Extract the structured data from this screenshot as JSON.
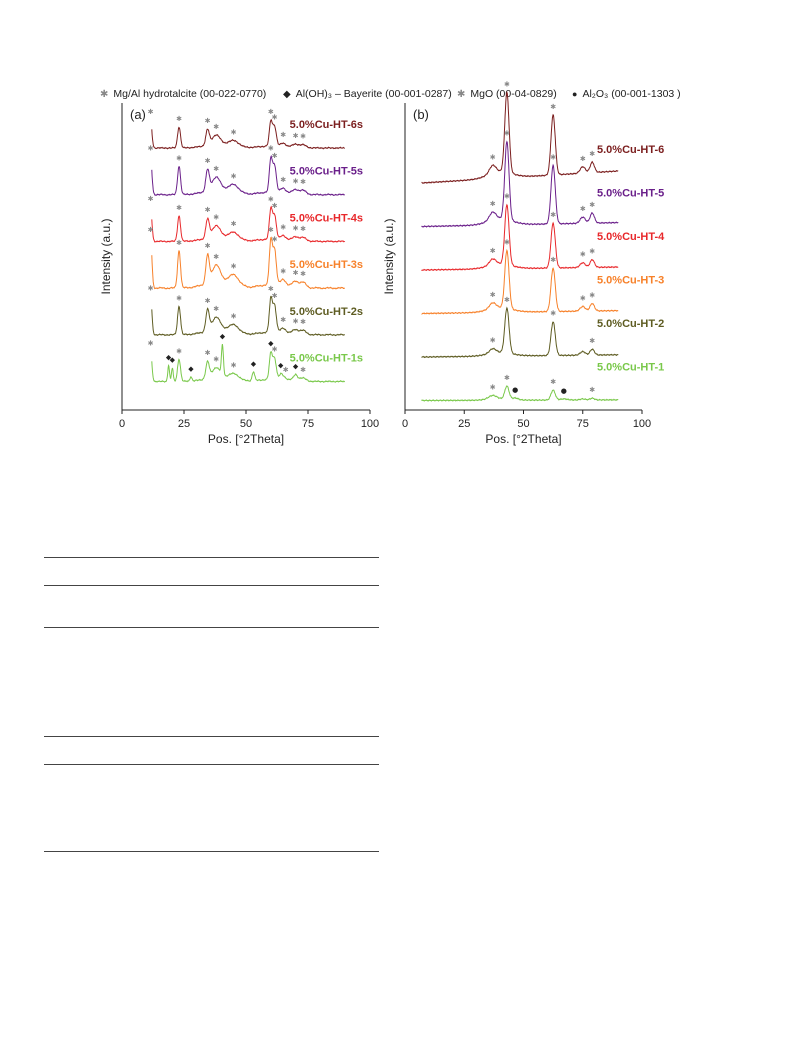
{
  "legend": {
    "items": [
      {
        "marker": "star",
        "text": "Mg/Al hydrotalcite (00-022-0770)"
      },
      {
        "marker": "diamond",
        "text": "Al(OH)₃ – Bayerite (00-001-0287)"
      },
      {
        "marker": "star",
        "text": "MgO (00-04-0829)"
      },
      {
        "marker": "dot",
        "text": "Al₂O₃ (00-001-1303 )"
      }
    ]
  },
  "chart_data": [
    {
      "panel_label": "(a)",
      "type": "line",
      "xlabel": "Pos. [°2Theta]",
      "ylabel": "Intensity (a.u.)",
      "xlim": [
        0,
        100
      ],
      "xticks": [
        0,
        25,
        50,
        75,
        100
      ],
      "yticks_shown": false,
      "series": [
        {
          "name": "5.0%Cu-HT-6s",
          "color": "#7b1e1e",
          "peaks_2theta": [
            11.5,
            23,
            34.5,
            38,
            45,
            60,
            61.5,
            65,
            70,
            73
          ],
          "hydrotalcite_marks": [
            11.5,
            23,
            34.5,
            38,
            45,
            60,
            61.5,
            65,
            70,
            73
          ]
        },
        {
          "name": "5.0%Cu-HT-5s",
          "color": "#6a1f8a",
          "peaks_2theta": [
            11.5,
            23,
            34.5,
            38,
            45,
            60,
            61.5,
            65,
            70,
            73
          ],
          "hydrotalcite_marks": [
            11.5,
            23,
            34.5,
            38,
            45,
            60,
            61.5,
            65,
            70,
            73
          ]
        },
        {
          "name": "5.0%Cu-HT-4s",
          "color": "#e8282b",
          "peaks_2theta": [
            11.5,
            23,
            34.5,
            38,
            45,
            60,
            61.5,
            65,
            70,
            73
          ],
          "hydrotalcite_marks": [
            11.5,
            23,
            34.5,
            38,
            45,
            60,
            61.5,
            65,
            70,
            73
          ]
        },
        {
          "name": "5.0%Cu-HT-3s",
          "color": "#f7812a",
          "peaks_2theta": [
            11.5,
            23,
            34.5,
            38,
            45,
            60,
            61.5,
            65,
            70,
            73
          ],
          "hydrotalcite_marks": [
            11.5,
            23,
            34.5,
            38,
            45,
            60,
            61.5,
            65,
            70,
            73
          ]
        },
        {
          "name": "5.0%Cu-HT-2s",
          "color": "#5e5c22",
          "peaks_2theta": [
            11.5,
            23,
            34.5,
            38,
            45,
            60,
            61.5,
            65,
            70,
            73
          ],
          "hydrotalcite_marks": [
            11.5,
            23,
            34.5,
            38,
            45,
            60,
            61.5,
            65,
            70,
            73
          ]
        },
        {
          "name": "5.0%Cu-HT-1s",
          "color": "#79c84a",
          "peaks_2theta": [
            11.5,
            18.8,
            20.3,
            23,
            27.8,
            34.5,
            38,
            40.5,
            45,
            53,
            60,
            61.5,
            64,
            66,
            70,
            73
          ],
          "hydrotalcite_marks": [
            11.5,
            23,
            34.5,
            38,
            45,
            61.5,
            66,
            73
          ],
          "bayerite_marks": [
            18.8,
            20.3,
            27.8,
            40.5,
            53,
            60,
            64,
            70
          ]
        }
      ]
    },
    {
      "panel_label": "(b)",
      "type": "line",
      "xlabel": "Pos. [°2Theta]",
      "ylabel": "Intensity (a.u.)",
      "xlim": [
        0,
        100
      ],
      "xticks": [
        0,
        25,
        50,
        75,
        100
      ],
      "yticks_shown": false,
      "series": [
        {
          "name": "5.0%Cu-HT-6",
          "color": "#7b1e1e",
          "peaks_2theta": [
            37,
            43,
            62.5,
            75,
            79
          ],
          "mgo_marks": [
            37,
            43,
            62.5,
            75,
            79
          ]
        },
        {
          "name": "5.0%Cu-HT-5",
          "color": "#6a1f8a",
          "peaks_2theta": [
            37,
            43,
            62.5,
            75,
            79
          ],
          "mgo_marks": [
            37,
            43,
            62.5,
            75,
            79
          ]
        },
        {
          "name": "5.0%Cu-HT-4",
          "color": "#e8282b",
          "peaks_2theta": [
            37,
            43,
            62.5,
            75,
            79
          ],
          "mgo_marks": [
            37,
            43,
            62.5,
            75,
            79
          ]
        },
        {
          "name": "5.0%Cu-HT-3",
          "color": "#f7812a",
          "peaks_2theta": [
            37,
            43,
            62.5,
            75,
            79
          ],
          "mgo_marks": [
            37,
            43,
            62.5,
            75,
            79
          ]
        },
        {
          "name": "5.0%Cu-HT-2",
          "color": "#5e5c22",
          "peaks_2theta": [
            37,
            43,
            62.5,
            79
          ],
          "mgo_marks": [
            37,
            43,
            62.5,
            79
          ]
        },
        {
          "name": "5.0%Cu-HT-1",
          "color": "#79c84a",
          "peaks_2theta": [
            37,
            43,
            46.5,
            62.5,
            67,
            79
          ],
          "mgo_marks": [
            37,
            43,
            62.5,
            79
          ],
          "al2o3_marks": [
            46.5,
            67
          ]
        }
      ]
    }
  ]
}
